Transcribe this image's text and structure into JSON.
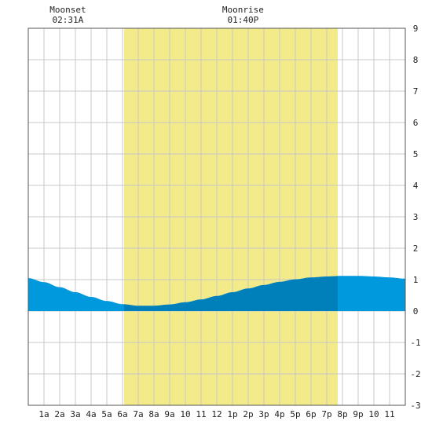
{
  "chart_data": {
    "type": "area",
    "title": "",
    "xlabel": "",
    "ylabel": "",
    "x_range": [
      0,
      24
    ],
    "ylim": [
      -3,
      9
    ],
    "y_ticks": [
      -3,
      -2,
      -1,
      0,
      1,
      2,
      3,
      4,
      5,
      6,
      7,
      8,
      9
    ],
    "x_tick_labels": [
      "1a",
      "2a",
      "3a",
      "4a",
      "5a",
      "6a",
      "7a",
      "8a",
      "9a",
      "10",
      "11",
      "12",
      "1p",
      "2p",
      "3p",
      "4p",
      "5p",
      "6p",
      "7p",
      "8p",
      "9p",
      "10",
      "11"
    ],
    "grid": true,
    "daylight": {
      "start_hour": 6.1,
      "end_hour": 19.7,
      "color": "#f3ea8a"
    },
    "annotations": [
      {
        "label": "Moonset",
        "time": "02:31A",
        "hour": 2.52
      },
      {
        "label": "Moonrise",
        "time": "01:40P",
        "hour": 13.67
      }
    ],
    "series": [
      {
        "x": [
          0,
          1,
          2,
          3,
          4,
          5,
          6,
          7,
          8,
          9,
          10,
          11,
          12,
          13,
          14,
          15,
          16,
          17,
          18,
          19,
          20,
          21,
          22,
          23,
          24
        ],
        "y": [
          1.05,
          0.92,
          0.76,
          0.6,
          0.45,
          0.32,
          0.22,
          0.17,
          0.17,
          0.21,
          0.28,
          0.37,
          0.48,
          0.6,
          0.72,
          0.83,
          0.93,
          1.01,
          1.07,
          1.1,
          1.12,
          1.12,
          1.1,
          1.07,
          1.03
        ]
      }
    ],
    "colors": {
      "tide_night": "#0099dd",
      "tide_day": "#0080bb",
      "grid": "#c8c8c8"
    }
  }
}
